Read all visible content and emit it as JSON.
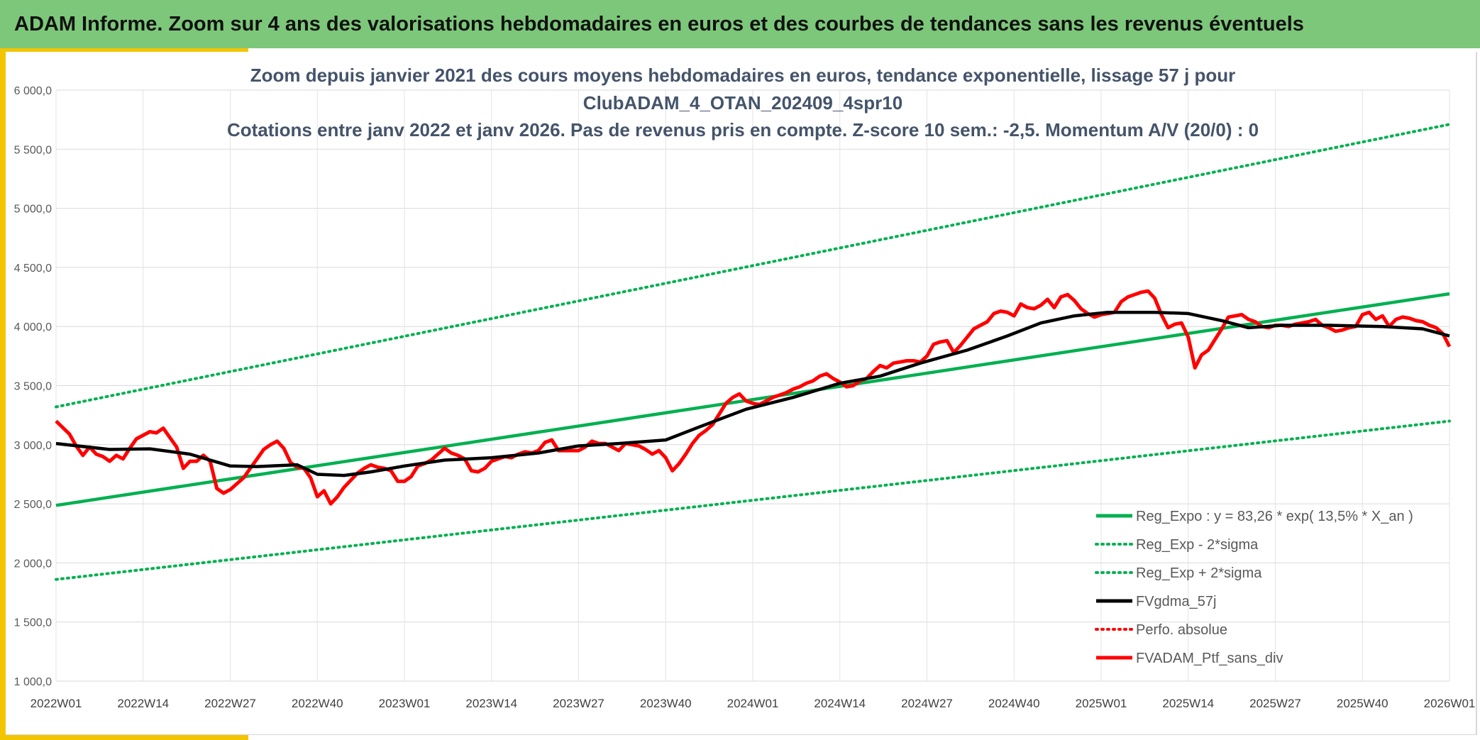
{
  "header": {
    "title": "ADAM Informe. Zoom sur 4 ans des valorisations hebdomadaires en euros et des courbes de tendances sans les revenus éventuels"
  },
  "colors": {
    "regression": "#00b050",
    "moving_average": "#000000",
    "portfolio": "#ff0000",
    "banner": "#7dc77a",
    "accent": "#f2c500"
  },
  "chart_data": {
    "type": "line",
    "title_lines": [
      "Zoom depuis janvier 2021 des cours moyens hebdomadaires en euros, tendance exponentielle, lissage 57 j pour",
      "ClubADAM_4_OTAN_202409_4spr10",
      "Cotations entre janv 2022 et janv 2026. Pas de revenus pris en compte. Z-score 10 sem.: -2,5. Momentum A/V (20/0) : 0"
    ],
    "xlabel": "",
    "ylabel": "",
    "ylim": [
      1000,
      6000
    ],
    "y_ticks": [
      "1 000,0",
      "1 500,0",
      "2 000,0",
      "2 500,0",
      "3 000,0",
      "3 500,0",
      "4 000,0",
      "4 500,0",
      "5 000,0",
      "5 500,0",
      "6 000,0"
    ],
    "x_ticks": [
      "2022W01",
      "2022W14",
      "2022W27",
      "2022W40",
      "2023W01",
      "2023W14",
      "2023W27",
      "2023W40",
      "2024W01",
      "2024W14",
      "2024W27",
      "2024W40",
      "2025W01",
      "2025W14",
      "2025W27",
      "2025W40",
      "2026W01"
    ],
    "grid": true,
    "legend_position": "bottom-right",
    "series": [
      {
        "name": "Reg_Expo : y = 83,26 * exp( 13,5% *  X_an )",
        "style": "solid",
        "color": "#00b050",
        "points": [
          [
            0,
            2487
          ],
          [
            208,
            4277
          ]
        ]
      },
      {
        "name": "Reg_Exp - 2*sigma",
        "style": "dotted",
        "color": "#00b050",
        "points": [
          [
            0,
            1860
          ],
          [
            208,
            3200
          ]
        ]
      },
      {
        "name": "Reg_Exp + 2*sigma",
        "style": "dotted",
        "color": "#00b050",
        "points": [
          [
            0,
            3320
          ],
          [
            208,
            5710
          ]
        ]
      },
      {
        "name": "FVgdma_57j",
        "style": "solid",
        "color": "#000000",
        "points": [
          [
            0,
            3010
          ],
          [
            8,
            2960
          ],
          [
            14,
            2965
          ],
          [
            20,
            2920
          ],
          [
            26,
            2820
          ],
          [
            30,
            2815
          ],
          [
            36,
            2830
          ],
          [
            39,
            2750
          ],
          [
            43,
            2740
          ],
          [
            47,
            2770
          ],
          [
            52,
            2820
          ],
          [
            58,
            2870
          ],
          [
            65,
            2890
          ],
          [
            72,
            2930
          ],
          [
            78,
            2990
          ],
          [
            84,
            3010
          ],
          [
            91,
            3040
          ],
          [
            96,
            3150
          ],
          [
            103,
            3300
          ],
          [
            110,
            3400
          ],
          [
            117,
            3520
          ],
          [
            123,
            3580
          ],
          [
            129,
            3690
          ],
          [
            136,
            3800
          ],
          [
            142,
            3920
          ],
          [
            147,
            4030
          ],
          [
            152,
            4090
          ],
          [
            157,
            4120
          ],
          [
            164,
            4120
          ],
          [
            169,
            4110
          ],
          [
            174,
            4050
          ],
          [
            178,
            3990
          ],
          [
            183,
            4010
          ],
          [
            190,
            4010
          ],
          [
            198,
            4000
          ],
          [
            204,
            3980
          ],
          [
            208,
            3920
          ]
        ]
      },
      {
        "name": "Perfo. absolue",
        "style": "dotted",
        "color": "#ff0000",
        "points": []
      },
      {
        "name": "FVADAM_Ptf_sans_div",
        "style": "solid",
        "color": "#ff0000",
        "points": [
          [
            0,
            3200
          ],
          [
            2,
            3090
          ],
          [
            3,
            2990
          ],
          [
            4,
            2910
          ],
          [
            5,
            2980
          ],
          [
            6,
            2920
          ],
          [
            7,
            2900
          ],
          [
            8,
            2860
          ],
          [
            9,
            2910
          ],
          [
            10,
            2880
          ],
          [
            11,
            2970
          ],
          [
            12,
            3050
          ],
          [
            14,
            3110
          ],
          [
            15,
            3100
          ],
          [
            16,
            3140
          ],
          [
            17,
            3060
          ],
          [
            18,
            2980
          ],
          [
            19,
            2800
          ],
          [
            20,
            2860
          ],
          [
            21,
            2860
          ],
          [
            22,
            2910
          ],
          [
            23,
            2860
          ],
          [
            24,
            2630
          ],
          [
            25,
            2590
          ],
          [
            26,
            2620
          ],
          [
            27,
            2670
          ],
          [
            28,
            2720
          ],
          [
            29,
            2800
          ],
          [
            30,
            2880
          ],
          [
            31,
            2960
          ],
          [
            32,
            3000
          ],
          [
            33,
            3030
          ],
          [
            34,
            2970
          ],
          [
            35,
            2850
          ],
          [
            36,
            2810
          ],
          [
            37,
            2800
          ],
          [
            38,
            2720
          ],
          [
            39,
            2560
          ],
          [
            40,
            2610
          ],
          [
            41,
            2500
          ],
          [
            42,
            2560
          ],
          [
            43,
            2640
          ],
          [
            44,
            2700
          ],
          [
            45,
            2760
          ],
          [
            46,
            2800
          ],
          [
            47,
            2830
          ],
          [
            48,
            2810
          ],
          [
            49,
            2800
          ],
          [
            50,
            2780
          ],
          [
            51,
            2690
          ],
          [
            52,
            2690
          ],
          [
            53,
            2730
          ],
          [
            54,
            2820
          ],
          [
            55,
            2840
          ],
          [
            56,
            2870
          ],
          [
            57,
            2920
          ],
          [
            58,
            2970
          ],
          [
            59,
            2930
          ],
          [
            60,
            2910
          ],
          [
            61,
            2880
          ],
          [
            62,
            2780
          ],
          [
            63,
            2770
          ],
          [
            64,
            2800
          ],
          [
            65,
            2860
          ],
          [
            66,
            2880
          ],
          [
            67,
            2900
          ],
          [
            68,
            2890
          ],
          [
            69,
            2920
          ],
          [
            70,
            2940
          ],
          [
            71,
            2930
          ],
          [
            72,
            2950
          ],
          [
            73,
            3020
          ],
          [
            74,
            3040
          ],
          [
            75,
            2950
          ],
          [
            76,
            2950
          ],
          [
            77,
            2950
          ],
          [
            78,
            2950
          ],
          [
            79,
            2980
          ],
          [
            80,
            3030
          ],
          [
            81,
            3010
          ],
          [
            82,
            3010
          ],
          [
            83,
            2980
          ],
          [
            84,
            2950
          ],
          [
            85,
            3010
          ],
          [
            86,
            3000
          ],
          [
            87,
            2990
          ],
          [
            88,
            2960
          ],
          [
            89,
            2920
          ],
          [
            90,
            2950
          ],
          [
            91,
            2890
          ],
          [
            92,
            2780
          ],
          [
            93,
            2840
          ],
          [
            94,
            2920
          ],
          [
            95,
            3010
          ],
          [
            96,
            3080
          ],
          [
            97,
            3120
          ],
          [
            98,
            3170
          ],
          [
            99,
            3260
          ],
          [
            100,
            3350
          ],
          [
            101,
            3400
          ],
          [
            102,
            3430
          ],
          [
            103,
            3370
          ],
          [
            104,
            3350
          ],
          [
            105,
            3340
          ],
          [
            106,
            3370
          ],
          [
            107,
            3400
          ],
          [
            108,
            3420
          ],
          [
            109,
            3440
          ],
          [
            110,
            3470
          ],
          [
            111,
            3490
          ],
          [
            112,
            3520
          ],
          [
            113,
            3540
          ],
          [
            114,
            3580
          ],
          [
            115,
            3600
          ],
          [
            116,
            3560
          ],
          [
            117,
            3530
          ],
          [
            118,
            3490
          ],
          [
            119,
            3500
          ],
          [
            120,
            3540
          ],
          [
            121,
            3560
          ],
          [
            122,
            3620
          ],
          [
            123,
            3670
          ],
          [
            124,
            3650
          ],
          [
            125,
            3690
          ],
          [
            126,
            3700
          ],
          [
            127,
            3710
          ],
          [
            128,
            3710
          ],
          [
            129,
            3700
          ],
          [
            130,
            3750
          ],
          [
            131,
            3850
          ],
          [
            132,
            3870
          ],
          [
            133,
            3880
          ],
          [
            134,
            3780
          ],
          [
            135,
            3840
          ],
          [
            136,
            3910
          ],
          [
            137,
            3980
          ],
          [
            138,
            4010
          ],
          [
            139,
            4040
          ],
          [
            140,
            4110
          ],
          [
            141,
            4130
          ],
          [
            142,
            4120
          ],
          [
            143,
            4090
          ],
          [
            144,
            4190
          ],
          [
            145,
            4160
          ],
          [
            146,
            4150
          ],
          [
            147,
            4180
          ],
          [
            148,
            4230
          ],
          [
            149,
            4160
          ],
          [
            150,
            4250
          ],
          [
            151,
            4270
          ],
          [
            152,
            4220
          ],
          [
            153,
            4150
          ],
          [
            154,
            4110
          ],
          [
            155,
            4080
          ],
          [
            156,
            4100
          ],
          [
            157,
            4110
          ],
          [
            158,
            4120
          ],
          [
            159,
            4210
          ],
          [
            160,
            4250
          ],
          [
            161,
            4270
          ],
          [
            162,
            4290
          ],
          [
            163,
            4300
          ],
          [
            164,
            4240
          ],
          [
            165,
            4100
          ],
          [
            166,
            3990
          ],
          [
            167,
            4020
          ],
          [
            168,
            4030
          ],
          [
            169,
            3910
          ],
          [
            170,
            3650
          ],
          [
            171,
            3760
          ],
          [
            172,
            3800
          ],
          [
            173,
            3890
          ],
          [
            174,
            3980
          ],
          [
            175,
            4080
          ],
          [
            176,
            4090
          ],
          [
            177,
            4100
          ],
          [
            178,
            4060
          ],
          [
            179,
            4040
          ],
          [
            180,
            4000
          ],
          [
            181,
            3990
          ],
          [
            182,
            4010
          ],
          [
            183,
            4010
          ],
          [
            184,
            4000
          ],
          [
            185,
            4020
          ],
          [
            186,
            4030
          ],
          [
            187,
            4040
          ],
          [
            188,
            4060
          ],
          [
            189,
            4010
          ],
          [
            190,
            3990
          ],
          [
            191,
            3960
          ],
          [
            192,
            3970
          ],
          [
            193,
            3990
          ],
          [
            194,
            4000
          ],
          [
            195,
            4100
          ],
          [
            196,
            4120
          ],
          [
            197,
            4060
          ],
          [
            198,
            4090
          ],
          [
            199,
            4000
          ],
          [
            200,
            4060
          ],
          [
            201,
            4080
          ],
          [
            202,
            4070
          ],
          [
            203,
            4050
          ],
          [
            204,
            4040
          ],
          [
            205,
            4010
          ],
          [
            206,
            3990
          ],
          [
            207,
            3940
          ],
          [
            208,
            3830
          ]
        ]
      }
    ]
  }
}
